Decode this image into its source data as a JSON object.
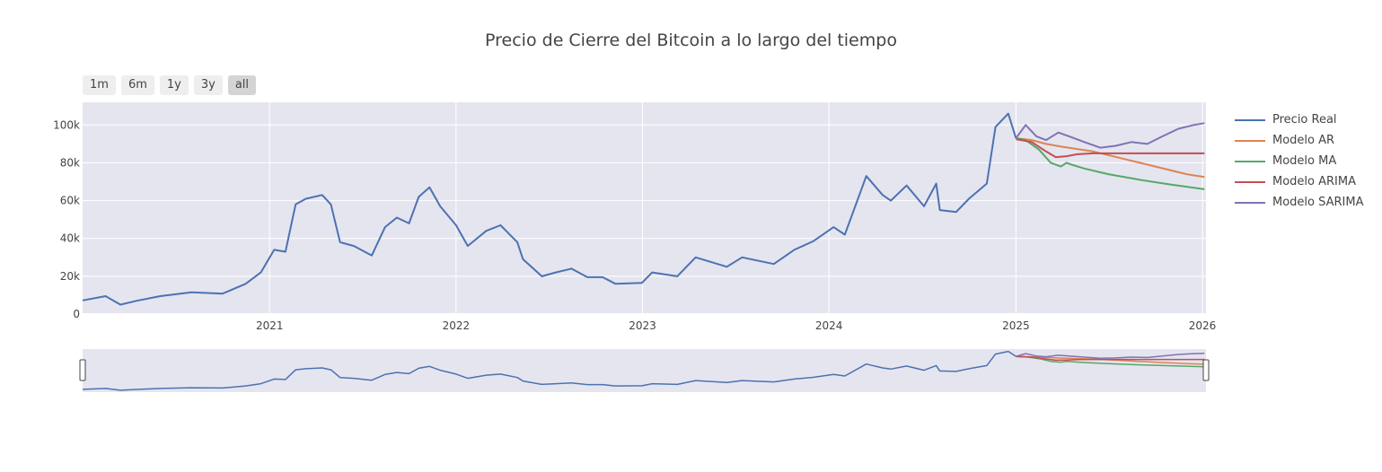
{
  "title": "Precio de Cierre del Bitcoin a lo largo del tiempo",
  "range_buttons": [
    {
      "label": "1m"
    },
    {
      "label": "6m"
    },
    {
      "label": "1y"
    },
    {
      "label": "3y"
    },
    {
      "label": "all",
      "active": true
    }
  ],
  "colors": {
    "plot_bg": "#e5e5f0",
    "grid": "#ffffff",
    "Precio Real": "#4c72b0",
    "Modelo AR": "#dd8452",
    "Modelo MA": "#55a868",
    "Modelo ARIMA": "#c44e52",
    "Modelo SARIMA": "#8172b3"
  },
  "chart_data": {
    "type": "line",
    "xlabel": "",
    "ylabel": "",
    "x_ticks": [
      "2021",
      "2022",
      "2023",
      "2024",
      "2025",
      "2026"
    ],
    "y_ticks": [
      "0",
      "20k",
      "40k",
      "60k",
      "80k",
      "100k"
    ],
    "xlim": [
      "2020-01-01",
      "2026-01-08"
    ],
    "ylim": [
      0,
      112000
    ],
    "legend_position": "right",
    "range_slider": true,
    "series": [
      {
        "name": "Precio Real",
        "x": [
          "2020-01-01",
          "2020-02-15",
          "2020-03-15",
          "2020-04-15",
          "2020-06-01",
          "2020-08-01",
          "2020-10-01",
          "2020-11-15",
          "2020-12-15",
          "2021-01-10",
          "2021-02-01",
          "2021-02-21",
          "2021-03-13",
          "2021-04-14",
          "2021-05-01",
          "2021-05-19",
          "2021-06-15",
          "2021-07-20",
          "2021-08-15",
          "2021-09-07",
          "2021-10-01",
          "2021-10-20",
          "2021-11-10",
          "2021-12-01",
          "2022-01-01",
          "2022-01-24",
          "2022-03-01",
          "2022-03-29",
          "2022-05-01",
          "2022-05-12",
          "2022-06-18",
          "2022-07-15",
          "2022-08-15",
          "2022-09-15",
          "2022-10-15",
          "2022-11-09",
          "2022-12-31",
          "2023-01-20",
          "2023-03-10",
          "2023-04-15",
          "2023-06-15",
          "2023-07-15",
          "2023-09-15",
          "2023-10-25",
          "2023-12-01",
          "2024-01-10",
          "2024-02-01",
          "2024-03-14",
          "2024-04-15",
          "2024-05-01",
          "2024-06-01",
          "2024-07-05",
          "2024-07-29",
          "2024-08-05",
          "2024-09-06",
          "2024-10-01",
          "2024-11-05",
          "2024-11-22",
          "2024-12-17",
          "2025-01-01"
        ],
        "y": [
          7200,
          9500,
          5000,
          7000,
          9500,
          11500,
          10800,
          16000,
          22000,
          34000,
          33000,
          58000,
          61000,
          63000,
          58000,
          38000,
          36000,
          31000,
          46000,
          51000,
          48000,
          62000,
          67000,
          57000,
          47000,
          36000,
          44000,
          47000,
          38000,
          29000,
          20000,
          22000,
          24000,
          19500,
          19500,
          16000,
          16500,
          22000,
          20000,
          30000,
          25000,
          30000,
          26500,
          34000,
          38500,
          46000,
          42000,
          73000,
          63000,
          60000,
          68000,
          57000,
          69000,
          55000,
          54000,
          61000,
          69000,
          99000,
          106000,
          93000
        ]
      },
      {
        "name": "Modelo AR",
        "x": [
          "2025-01-01",
          "2025-02-01",
          "2025-03-01",
          "2025-04-01",
          "2025-06-01",
          "2025-08-01",
          "2025-10-01",
          "2025-12-01",
          "2026-01-05"
        ],
        "y": [
          93000,
          92000,
          90000,
          88500,
          86000,
          82000,
          78000,
          74000,
          72500
        ]
      },
      {
        "name": "Modelo MA",
        "x": [
          "2025-01-01",
          "2025-01-20",
          "2025-02-15",
          "2025-03-10",
          "2025-03-30",
          "2025-04-10",
          "2025-04-20",
          "2025-05-15",
          "2025-07-01",
          "2025-09-01",
          "2025-11-01",
          "2026-01-05"
        ],
        "y": [
          93000,
          92000,
          87000,
          80000,
          78000,
          80000,
          79000,
          77000,
          74000,
          71000,
          68500,
          66000
        ]
      },
      {
        "name": "Modelo ARIMA",
        "x": [
          "2025-01-01",
          "2025-02-01",
          "2025-03-01",
          "2025-03-20",
          "2025-04-10",
          "2025-05-01",
          "2025-06-01",
          "2026-01-05"
        ],
        "y": [
          92500,
          91000,
          86000,
          83000,
          83500,
          84500,
          85000,
          85000
        ]
      },
      {
        "name": "Modelo SARIMA",
        "x": [
          "2025-01-01",
          "2025-01-20",
          "2025-02-10",
          "2025-03-01",
          "2025-03-25",
          "2025-04-15",
          "2025-05-15",
          "2025-06-15",
          "2025-07-15",
          "2025-08-15",
          "2025-09-15",
          "2025-10-15",
          "2025-11-15",
          "2025-12-15",
          "2026-01-05"
        ],
        "y": [
          93000,
          100000,
          94000,
          92000,
          96000,
          94000,
          91000,
          88000,
          89000,
          91000,
          90000,
          94000,
          98000,
          100000,
          101000
        ]
      }
    ]
  }
}
